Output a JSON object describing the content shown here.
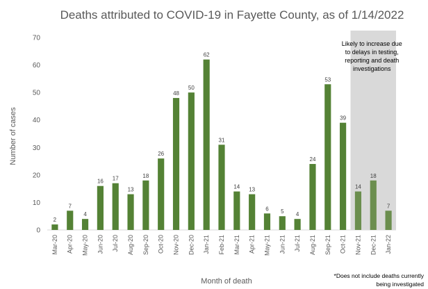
{
  "chart_data": {
    "type": "bar",
    "title": "Deaths attributed to COVID-19 in Fayette County, as of 1/14/2022",
    "xlabel": "Month of death",
    "ylabel": "Number of cases",
    "ylim": [
      0,
      70
    ],
    "yticks": [
      "0",
      "10",
      "20",
      "30",
      "40",
      "50",
      "60",
      "70"
    ],
    "grid": false,
    "categories": [
      "Mar-20",
      "Apr-20",
      "May-20",
      "Jun-20",
      "Jul-20",
      "Aug-20",
      "Sep-20",
      "Oct-20",
      "Nov-20",
      "Dec-20",
      "Jan-21",
      "Feb-21",
      "Mar-21",
      "Apr-21",
      "May-21",
      "Jun-21",
      "Jul-21",
      "Aug-21",
      "Sep-21",
      "Oct-21",
      "Nov-21",
      "Dec-21",
      "Jan-22"
    ],
    "values": [
      2,
      7,
      4,
      16,
      17,
      13,
      18,
      26,
      48,
      50,
      62,
      31,
      14,
      13,
      6,
      5,
      4,
      24,
      53,
      39,
      14,
      18,
      7
    ],
    "data_labels": [
      "2",
      "7",
      "4",
      "16",
      "17",
      "13",
      "18",
      "26",
      "48",
      "50",
      "62",
      "31",
      "14",
      "13",
      "6",
      "5",
      "4",
      "24",
      "53",
      "39",
      "14",
      "18",
      "7"
    ],
    "shaded_region": {
      "categories": [
        "Nov-21",
        "Dec-21",
        "Jan-22"
      ],
      "note_lines": [
        "Likely to increase due",
        "to delays in testing,",
        "reporting and death",
        "investigations"
      ],
      "shade_color": "#d9d9d9",
      "bar_color": "#6b8e4e"
    },
    "bar_color": "#548235",
    "footnote_lines": [
      "*Does not include deaths currently",
      "being investigated"
    ]
  }
}
